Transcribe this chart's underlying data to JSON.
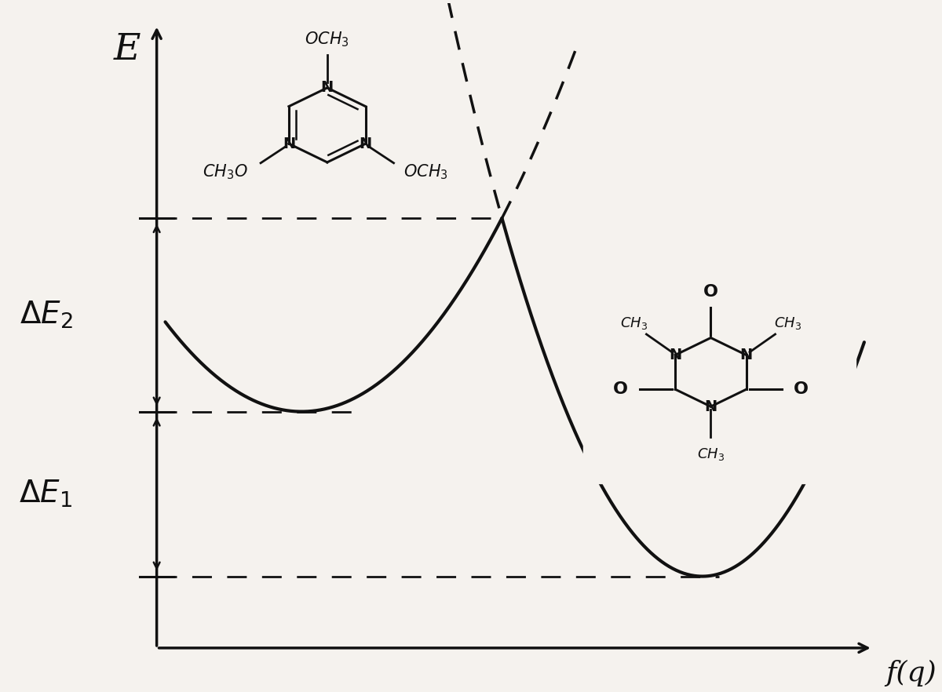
{
  "bg_color": "#f5f2ee",
  "curve_color": "#111111",
  "dashed_color": "#111111",
  "axis_color": "#111111",
  "text_color": "#111111",
  "figsize": [
    12.0,
    8.82
  ],
  "dpi": 100,
  "xlim": [
    0,
    10.5
  ],
  "ylim": [
    0,
    9.5
  ],
  "x0_L": 3.5,
  "y_min_L": 3.8,
  "x0_R": 8.2,
  "y_min_R": 1.5,
  "x_trans": 5.85,
  "y_trans": 6.5,
  "ax_origin_x": 1.8,
  "ax_origin_y": 0.5,
  "ax_top_y": 9.2,
  "ax_right_x": 10.2,
  "left_curve_start_x": 1.9,
  "right_curve_end_x": 10.1
}
